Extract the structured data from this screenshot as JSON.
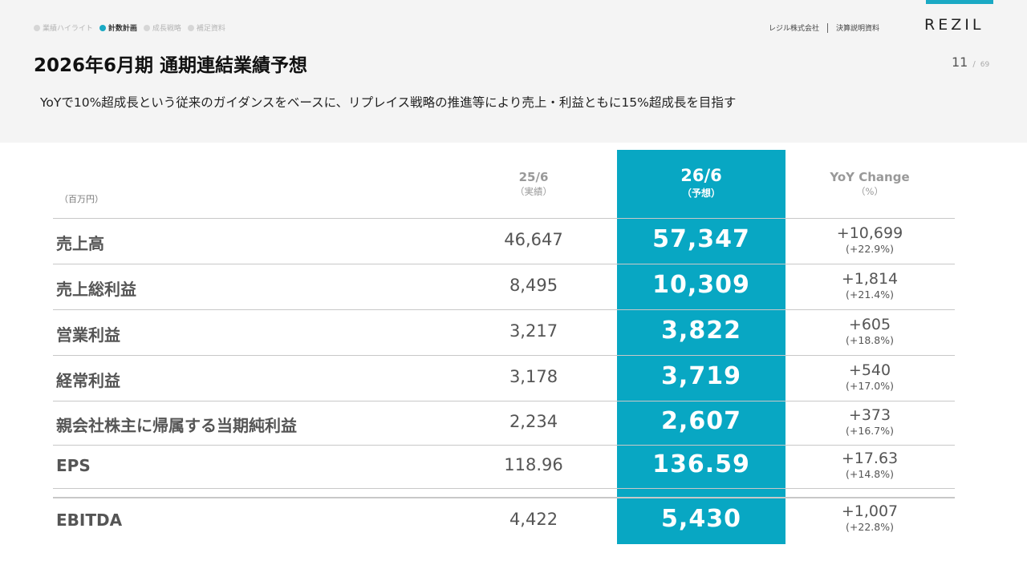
{
  "nav": {
    "items": [
      {
        "label": "業績ハイライト",
        "active": false
      },
      {
        "label": "計数計画",
        "active": true
      },
      {
        "label": "成長戦略",
        "active": false
      },
      {
        "label": "補足資料",
        "active": false
      }
    ]
  },
  "header": {
    "company": "レジル株式会社",
    "doc_type": "決算説明資料",
    "logo_text": "REZIL",
    "accent_color": "#1aa9c4"
  },
  "title": "2026年6月期 通期連結業績予想",
  "page": {
    "current": "11",
    "separator": "/",
    "total": "69"
  },
  "subtitle": "YoYで10%超成長という従来のガイダンスをベースに、リプレイス戦略の推進等により売上・利益ともに15%超成長を目指す",
  "table": {
    "unit_label": "（百万円）",
    "columns": {
      "prev": {
        "main": "25/6",
        "sub": "（実績）"
      },
      "forecast": {
        "main": "26/6",
        "sub": "（予想）"
      },
      "yoy": {
        "main": "YoY Change",
        "sub": "（%）"
      }
    },
    "rows": [
      {
        "label": "売上高",
        "prev": "46,647",
        "forecast": "57,347",
        "yoy_abs": "+10,699",
        "yoy_pct": "(+22.9%)"
      },
      {
        "label": "売上総利益",
        "prev": "8,495",
        "forecast": "10,309",
        "yoy_abs": "+1,814",
        "yoy_pct": "(+21.4%)"
      },
      {
        "label": "営業利益",
        "prev": "3,217",
        "forecast": "3,822",
        "yoy_abs": "+605",
        "yoy_pct": "(+18.8%)"
      },
      {
        "label": "経常利益",
        "prev": "3,178",
        "forecast": "3,719",
        "yoy_abs": "+540",
        "yoy_pct": "(+17.0%)"
      },
      {
        "label": "親会社株主に帰属する当期純利益",
        "prev": "2,234",
        "forecast": "2,607",
        "yoy_abs": "+373",
        "yoy_pct": "(+16.7%)"
      },
      {
        "label": "EPS",
        "prev": "118.96",
        "forecast": "136.59",
        "yoy_abs": "+17.63",
        "yoy_pct": "(+14.8%)"
      },
      {
        "label": "EBITDA",
        "prev": "4,422",
        "forecast": "5,430",
        "yoy_abs": "+1,007",
        "yoy_pct": "(+22.8%)"
      }
    ],
    "highlight_color": "#08a7c3"
  }
}
